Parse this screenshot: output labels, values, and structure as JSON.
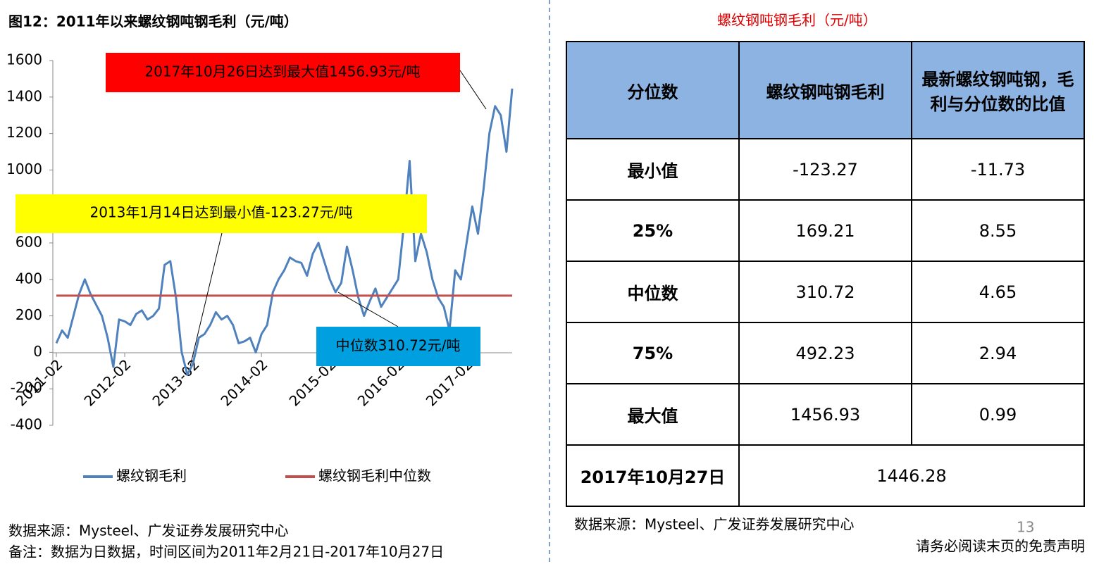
{
  "chart_data": {
    "type": "line",
    "title": "图12：2011年以来螺纹钢吨钢毛利（元/吨）",
    "x": [
      "2011-02",
      "2011-03",
      "2011-04",
      "2011-05",
      "2011-06",
      "2011-07",
      "2011-08",
      "2011-09",
      "2011-10",
      "2011-11",
      "2011-12",
      "2012-01",
      "2012-02",
      "2012-03",
      "2012-04",
      "2012-05",
      "2012-06",
      "2012-07",
      "2012-08",
      "2012-09",
      "2012-10",
      "2012-11",
      "2012-12",
      "2013-01",
      "2013-02",
      "2013-03",
      "2013-04",
      "2013-05",
      "2013-06",
      "2013-07",
      "2013-08",
      "2013-09",
      "2013-10",
      "2013-11",
      "2013-12",
      "2014-01",
      "2014-02",
      "2014-03",
      "2014-04",
      "2014-05",
      "2014-06",
      "2014-07",
      "2014-08",
      "2014-09",
      "2014-10",
      "2014-11",
      "2014-12",
      "2015-01",
      "2015-02",
      "2015-03",
      "2015-04",
      "2015-05",
      "2015-06",
      "2015-07",
      "2015-08",
      "2015-09",
      "2015-10",
      "2015-11",
      "2015-12",
      "2016-01",
      "2016-02",
      "2016-03",
      "2016-04",
      "2016-05",
      "2016-06",
      "2016-07",
      "2016-08",
      "2016-09",
      "2016-10",
      "2016-11",
      "2016-12",
      "2017-01",
      "2017-02",
      "2017-03",
      "2017-04",
      "2017-05",
      "2017-06",
      "2017-07",
      "2017-08",
      "2017-09",
      "2017-10"
    ],
    "series": [
      {
        "name": "螺纹钢毛利",
        "color": "#4f81bd",
        "values": [
          50,
          120,
          80,
          200,
          320,
          400,
          320,
          260,
          200,
          80,
          -80,
          180,
          170,
          150,
          210,
          230,
          180,
          200,
          240,
          480,
          500,
          300,
          0,
          -123.27,
          -60,
          80,
          100,
          150,
          220,
          180,
          200,
          150,
          50,
          60,
          80,
          0,
          100,
          150,
          330,
          400,
          450,
          520,
          500,
          490,
          420,
          540,
          600,
          500,
          400,
          330,
          380,
          580,
          450,
          300,
          200,
          280,
          350,
          250,
          300,
          350,
          400,
          700,
          1050,
          500,
          650,
          550,
          400,
          300,
          250,
          120,
          450,
          400,
          600,
          800,
          650,
          900,
          1200,
          1350,
          1300,
          1100,
          1446.28
        ]
      },
      {
        "name": "螺纹钢毛利中位数",
        "color": "#c0504d",
        "x": [
          "2011-02",
          "2017-10"
        ],
        "values": [
          310.72,
          310.72
        ]
      }
    ],
    "ylim": [
      -400,
      1600
    ],
    "yticks": [
      -400,
      -200,
      0,
      200,
      400,
      600,
      800,
      1000,
      1200,
      1400,
      1600
    ],
    "xticks": [
      "2011-02",
      "2012-02",
      "2013-02",
      "2014-02",
      "2015-02",
      "2016-02",
      "2017-02"
    ],
    "annotations": [
      "2017年10月26日达到最大值1456.93元/吨",
      "2013年1月14日达到最小值-123.27元/吨",
      "中位数310.72元/吨"
    ],
    "source": "数据来源：Mysteel、广发证券发展研究中心",
    "note": "备注：数据为日数据，时间区间为2011年2月21日-2017年10月27日"
  },
  "table": {
    "title": "螺纹钢吨钢毛利（元/吨）",
    "header": [
      "分位数",
      "螺纹钢吨钢毛利",
      "最新螺纹钢吨钢，毛利与分位数的比值"
    ],
    "rows": [
      [
        "最小值",
        "-123.27",
        "-11.73"
      ],
      [
        "25%",
        "169.21",
        "8.55"
      ],
      [
        "中位数",
        "310.72",
        "4.65"
      ],
      [
        "75%",
        "492.23",
        "2.94"
      ],
      [
        "最大值",
        "1456.93",
        "0.99"
      ],
      [
        "2017年10月27日",
        "1446.28"
      ]
    ],
    "source": "数据来源：Mysteel、广发证券发展研究中心"
  },
  "footer": {
    "page": "13",
    "disclaimer": "请务必阅读末页的免责声明"
  }
}
